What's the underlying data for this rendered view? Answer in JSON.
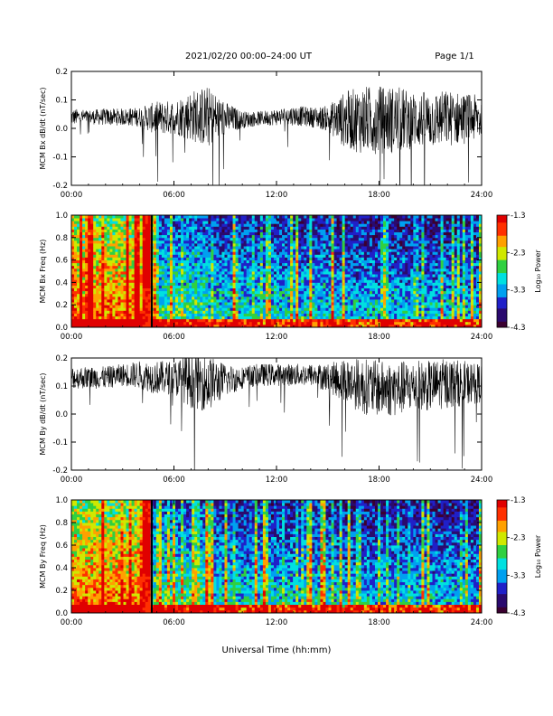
{
  "header": {
    "title": "2021/02/20  00:00–24:00 UT",
    "page": "Page 1/1"
  },
  "footer": {
    "xlabel": "Universal Time (hh:mm)"
  },
  "colormap": [
    "#3a0030",
    "#2a0a6e",
    "#2020c8",
    "#00a0f0",
    "#00e0e0",
    "#30d040",
    "#d0e800",
    "#ffa000",
    "#ff3000",
    "#e00000"
  ],
  "chart_data": [
    {
      "type": "line",
      "ylabel": "MCM Bx dB/dt (nT/sec)",
      "xlim": [
        0,
        24
      ],
      "ylim": [
        -0.2,
        0.2
      ],
      "xticks": [
        "00:00",
        "06:00",
        "12:00",
        "18:00",
        "24:00"
      ],
      "yticks": [
        "-0.2",
        "-0.1",
        "0.0",
        "0.1",
        "0.2"
      ],
      "ytick_values": [
        -0.2,
        -0.1,
        0.0,
        0.1,
        0.2
      ],
      "envelope": {
        "x": [
          0,
          1,
          2,
          3,
          4,
          5,
          6,
          7,
          8,
          9,
          10,
          11,
          12,
          13,
          14,
          15,
          16,
          17,
          18,
          19,
          20,
          21,
          22,
          23,
          24
        ],
        "center": [
          0.04,
          0.04,
          0.04,
          0.04,
          0.04,
          0.035,
          0.04,
          0.045,
          0.04,
          0.035,
          0.03,
          0.035,
          0.04,
          0.045,
          0.04,
          0.035,
          0.03,
          0.03,
          0.03,
          0.03,
          0.03,
          0.03,
          0.035,
          0.035,
          0.035
        ],
        "amplitude": [
          0.03,
          0.025,
          0.03,
          0.03,
          0.035,
          0.06,
          0.06,
          0.09,
          0.11,
          0.06,
          0.03,
          0.025,
          0.03,
          0.035,
          0.035,
          0.045,
          0.1,
          0.12,
          0.12,
          0.12,
          0.1,
          0.1,
          0.1,
          0.09,
          0.08
        ]
      }
    },
    {
      "type": "heatmap",
      "ylabel": "MCM Bx Freq (Hz)",
      "xlim": [
        0,
        24
      ],
      "ylim": [
        0,
        1.0
      ],
      "xticks": [
        "00:00",
        "06:00",
        "12:00",
        "18:00",
        "24:00"
      ],
      "yticks": [
        "0.0",
        "0.2",
        "0.4",
        "0.6",
        "0.8",
        "1.0"
      ],
      "ytick_values": [
        0.0,
        0.2,
        0.4,
        0.6,
        0.8,
        1.0
      ],
      "colorbar": {
        "label": "Log₁₀ Power",
        "range": [
          -4.3,
          -1.3
        ],
        "ticks": [
          "-1.3",
          "-2.3",
          "-3.3",
          "-4.3"
        ],
        "tick_values": [
          -1.3,
          -2.3,
          -3.3,
          -4.3
        ]
      }
    },
    {
      "type": "line",
      "ylabel": "MCM By dB/dt (nT/sec)",
      "xlim": [
        0,
        24
      ],
      "ylim": [
        -0.2,
        0.2
      ],
      "xticks": [
        "00:00",
        "06:00",
        "12:00",
        "18:00",
        "24:00"
      ],
      "yticks": [
        "-0.2",
        "-0.1",
        "0.0",
        "0.1",
        "0.2"
      ],
      "ytick_values": [
        -0.2,
        -0.1,
        0.0,
        0.1,
        0.2
      ],
      "envelope": {
        "x": [
          0,
          1,
          2,
          3,
          4,
          5,
          6,
          7,
          8,
          9,
          10,
          11,
          12,
          13,
          14,
          15,
          16,
          17,
          18,
          19,
          20,
          21,
          22,
          23,
          24
        ],
        "center": [
          0.13,
          0.13,
          0.13,
          0.14,
          0.14,
          0.13,
          0.13,
          0.12,
          0.11,
          0.12,
          0.13,
          0.14,
          0.14,
          0.14,
          0.14,
          0.13,
          0.12,
          0.1,
          0.09,
          0.09,
          0.1,
          0.1,
          0.11,
          0.11,
          0.11
        ],
        "amplitude": [
          0.04,
          0.04,
          0.04,
          0.04,
          0.05,
          0.06,
          0.06,
          0.1,
          0.1,
          0.06,
          0.04,
          0.04,
          0.04,
          0.04,
          0.04,
          0.05,
          0.08,
          0.1,
          0.1,
          0.1,
          0.09,
          0.09,
          0.09,
          0.08,
          0.07
        ]
      }
    },
    {
      "type": "heatmap",
      "ylabel": "MCM By Freq (Hz)",
      "xlim": [
        0,
        24
      ],
      "ylim": [
        0,
        1.0
      ],
      "xticks": [
        "00:00",
        "06:00",
        "12:00",
        "18:00",
        "24:00"
      ],
      "yticks": [
        "0.0",
        "0.2",
        "0.4",
        "0.6",
        "0.8",
        "1.0"
      ],
      "ytick_values": [
        0.0,
        0.2,
        0.4,
        0.6,
        0.8,
        1.0
      ],
      "colorbar": {
        "label": "Log₁₀ Power",
        "range": [
          -4.3,
          -1.3
        ],
        "ticks": [
          "-1.3",
          "-2.3",
          "-3.3",
          "-4.3"
        ],
        "tick_values": [
          -1.3,
          -2.3,
          -3.3,
          -4.3
        ]
      }
    }
  ]
}
